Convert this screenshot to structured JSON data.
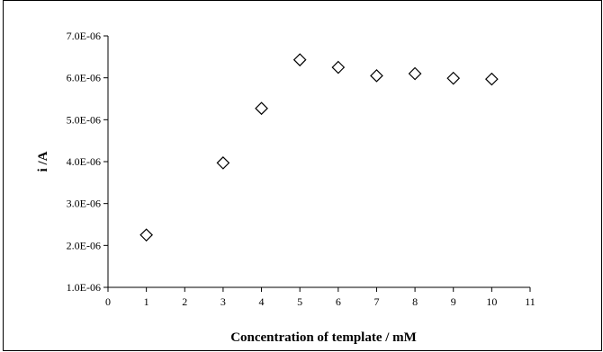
{
  "chart_data": {
    "type": "scatter",
    "title": "",
    "xlabel": "Concentration of template / mM",
    "ylabel": "i /A",
    "xlim": [
      0,
      11
    ],
    "ylim": [
      1e-06,
      7e-06
    ],
    "x_ticks": [
      0,
      1,
      2,
      3,
      4,
      5,
      6,
      7,
      8,
      9,
      10,
      11
    ],
    "y_ticks": [
      1e-06,
      2e-06,
      3e-06,
      4e-06,
      5e-06,
      6e-06,
      7e-06
    ],
    "x_tick_labels": [
      "0",
      "1",
      "2",
      "3",
      "4",
      "5",
      "6",
      "7",
      "8",
      "9",
      "10",
      "11"
    ],
    "y_tick_labels": [
      "1.0E-06",
      "2.0E-06",
      "3.0E-06",
      "4.0E-06",
      "5.0E-06",
      "6.0E-06",
      "7.0E-06"
    ],
    "grid": false,
    "legend": "none",
    "marker": "hollow-diamond",
    "marker_color": "#000000",
    "series": [
      {
        "x": [
          1,
          3,
          4,
          5,
          6,
          7,
          8,
          9,
          10
        ],
        "y": [
          2.25e-06,
          3.97e-06,
          5.27e-06,
          6.43e-06,
          6.25e-06,
          6.05e-06,
          6.1e-06,
          5.99e-06,
          5.97e-06
        ]
      }
    ]
  }
}
